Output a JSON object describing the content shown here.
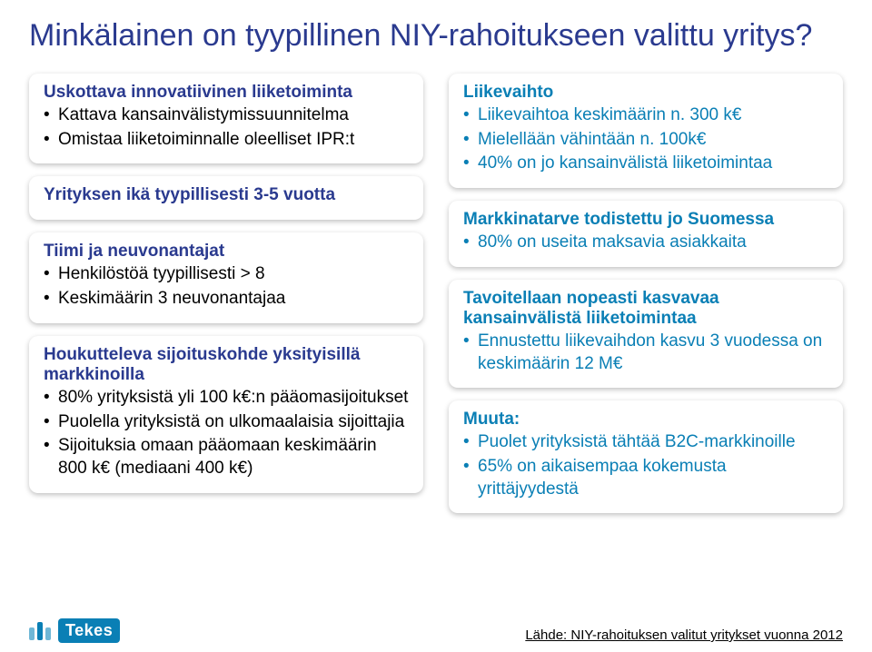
{
  "colors": {
    "title": "#2a3a8f",
    "left_box_title": "#2a3a8f",
    "left_text": "#000000",
    "right_box_title": "#0a7fb5",
    "right_text": "#0a7fb5",
    "logo_bg": "#0a7fb5"
  },
  "title": "Minkälainen on tyypillinen NIY-rahoitukseen valittu yritys?",
  "left": [
    {
      "title": "Uskottava innovatiivinen liiketoiminta",
      "items": [
        "Kattava kansainvälistymissuunnitelma",
        "Omistaa liiketoiminnalle oleelliset IPR:t"
      ]
    },
    {
      "title": "Yrityksen ikä tyypillisesti 3-5 vuotta",
      "items": []
    },
    {
      "title": "Tiimi ja neuvonantajat",
      "items": [
        "Henkilöstöä tyypillisesti > 8",
        "Keskimäärin 3 neuvonantajaa"
      ]
    },
    {
      "title": "Houkutteleva sijoituskohde yksityisillä markkinoilla",
      "items": [
        "80% yrityksistä yli 100 k€:n pääomasijoitukset",
        "Puolella yrityksistä on ulkomaalaisia sijoittajia",
        "Sijoituksia omaan pääomaan keskimäärin 800 k€ (mediaani 400 k€)"
      ]
    }
  ],
  "right": [
    {
      "title": "Liikevaihto",
      "items": [
        "Liikevaihtoa keskimäärin n. 300 k€",
        "Mielellään vähintään n. 100k€",
        "40% on jo kansainvälistä liiketoimintaa"
      ]
    },
    {
      "title": "Markkinatarve todistettu jo Suomessa",
      "items": [
        "80% on useita maksavia asiakkaita"
      ]
    },
    {
      "title": "Tavoitellaan nopeasti kasvavaa kansainvälistä liiketoimintaa",
      "items": [
        "Ennustettu liikevaihdon kasvu 3 vuodessa on keskimäärin 12 M€"
      ]
    },
    {
      "title": "Muuta:",
      "items": [
        "Puolet yrityksistä tähtää B2C-markkinoille",
        "65% on aikaisempaa kokemusta yrittäjyydestä"
      ]
    }
  ],
  "logo_text": "Tekes",
  "source": "Lähde: NIY-rahoituksen valitut yritykset vuonna 2012"
}
